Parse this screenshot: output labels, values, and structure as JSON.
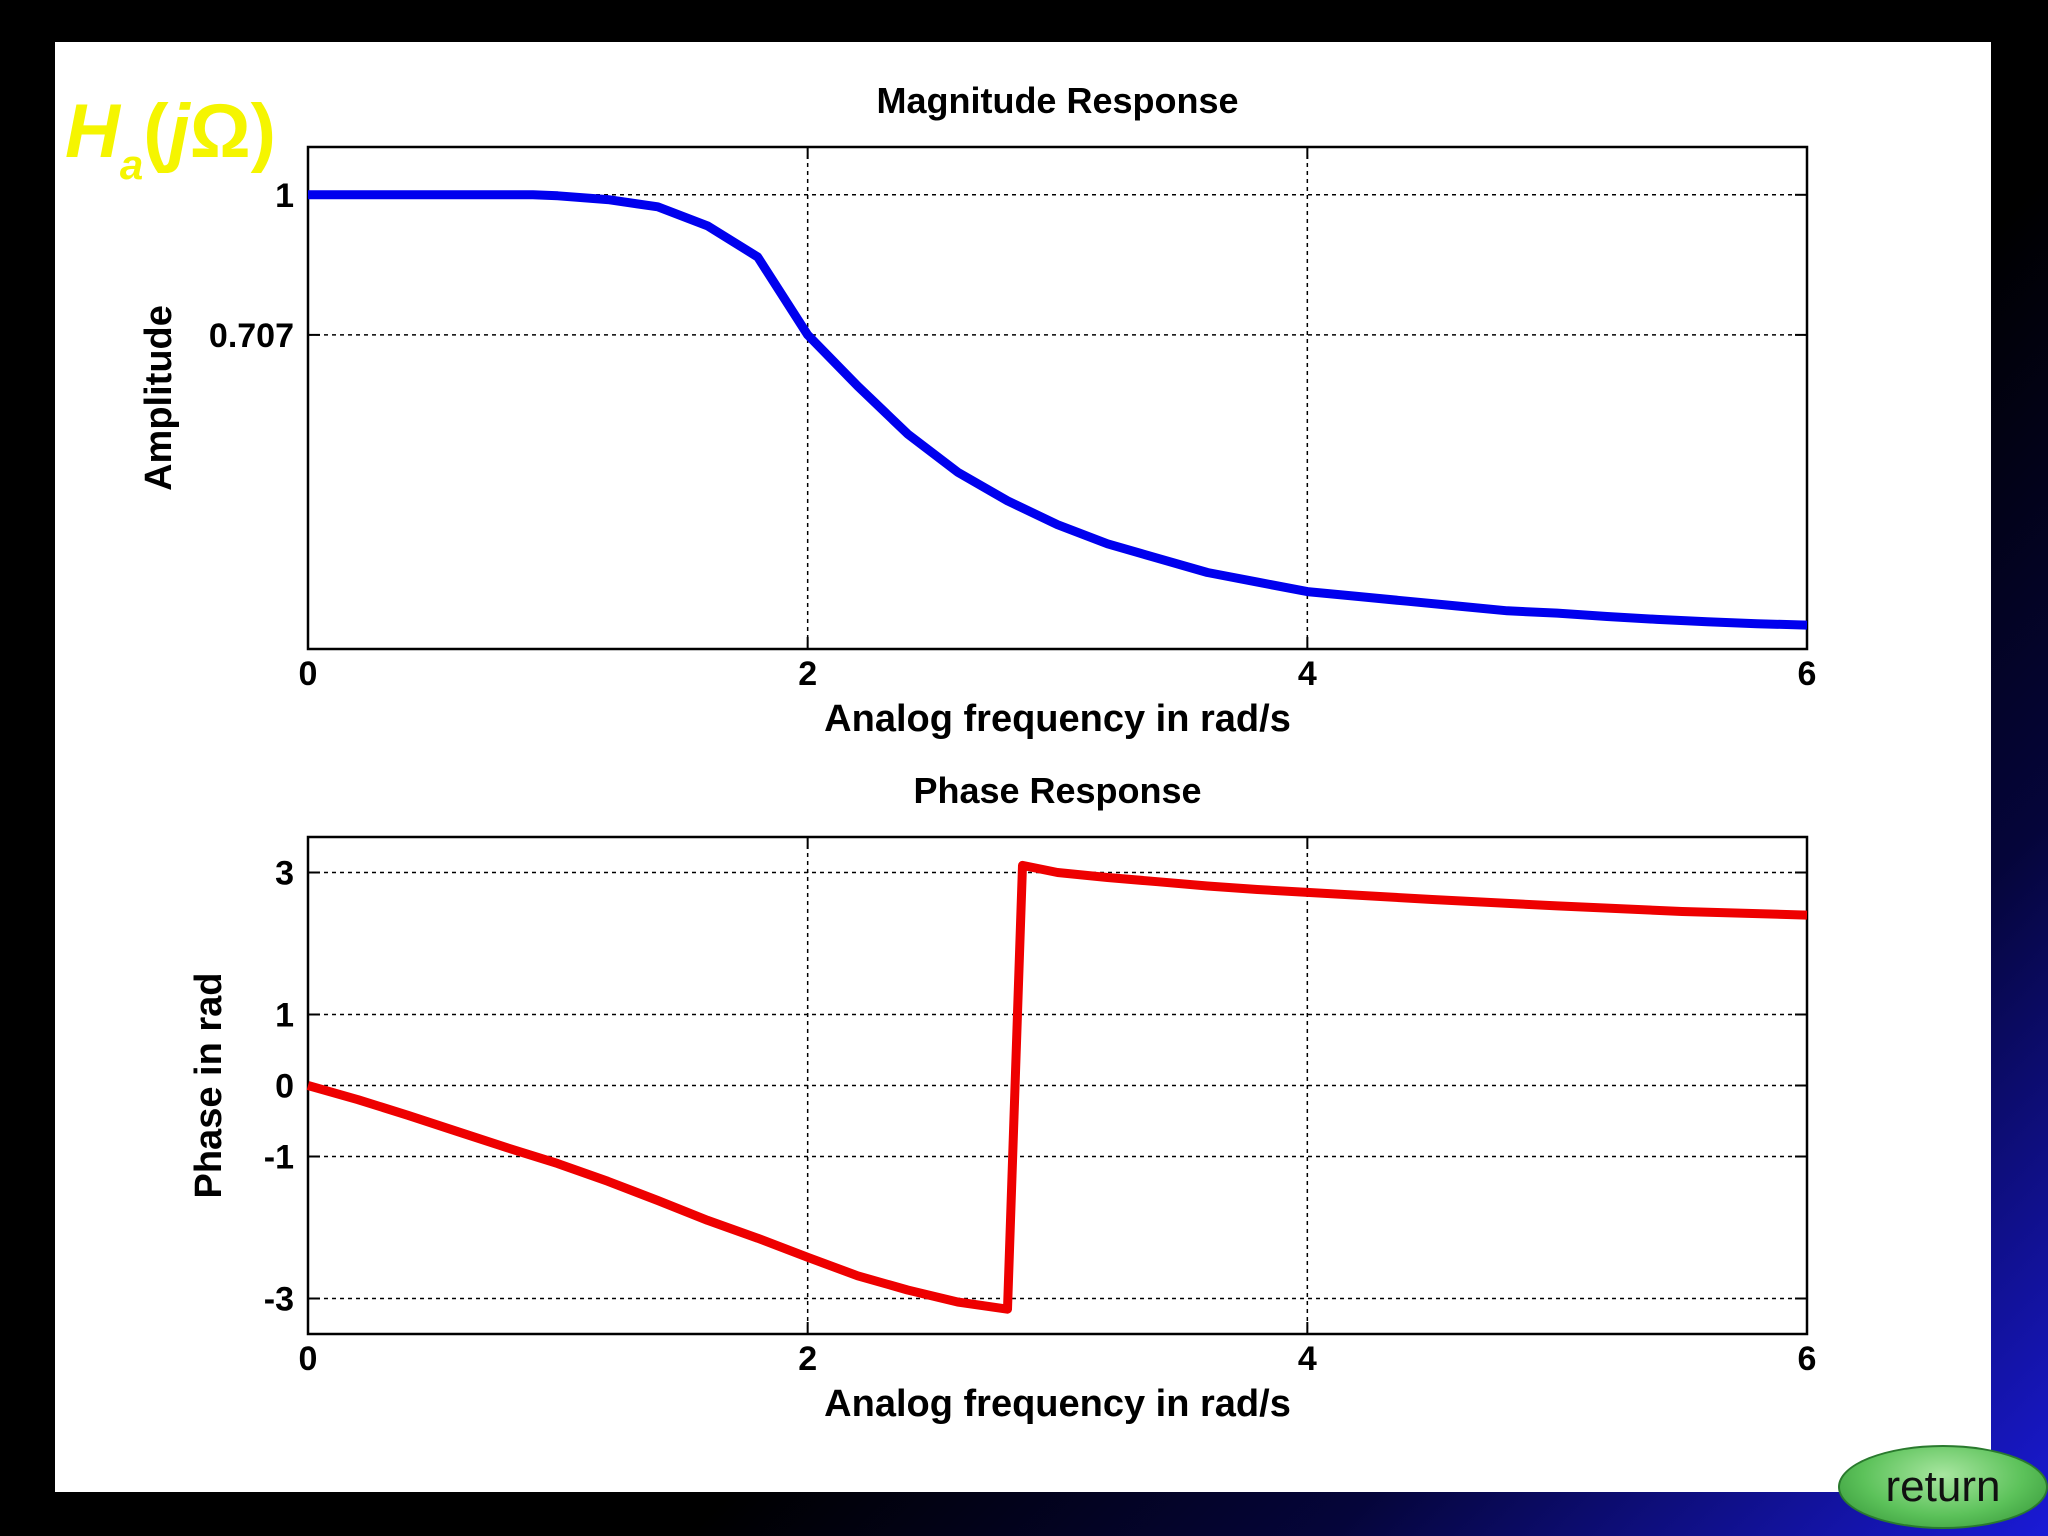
{
  "header_formula": {
    "H": "H",
    "sub": "a",
    "open": "(",
    "j": "j",
    "omega": "Ω",
    "close": ")"
  },
  "return_label": "return",
  "colors": {
    "magnitude": "#0000ee",
    "phase": "#ee0000",
    "formula": "#f5f500"
  },
  "chart_data": [
    {
      "type": "line",
      "title": "Magnitude Response",
      "xlabel": "Analog frequency in rad/s",
      "ylabel": "Amplitude",
      "xlim": [
        0,
        6
      ],
      "ylim": [
        0.05,
        1.1
      ],
      "xticks": [
        0,
        2,
        4,
        6
      ],
      "xtick_labels": [
        "0",
        "2",
        "4",
        "6"
      ],
      "yticks": [
        0.707,
        1
      ],
      "ytick_labels": [
        "0.707",
        "1"
      ],
      "grid": true,
      "series": [
        {
          "color": "#0000ee",
          "x": [
            0,
            0.5,
            0.9,
            1.0,
            1.2,
            1.4,
            1.6,
            1.8,
            2.0,
            2.2,
            2.4,
            2.6,
            2.8,
            3.0,
            3.2,
            3.4,
            3.6,
            3.8,
            4.0,
            4.2,
            4.4,
            4.6,
            4.8,
            5.0,
            5.2,
            5.4,
            5.6,
            5.8,
            6.0
          ],
          "y": [
            1.0,
            1.0,
            1.0,
            0.998,
            0.99,
            0.975,
            0.935,
            0.87,
            0.707,
            0.6,
            0.5,
            0.42,
            0.36,
            0.31,
            0.27,
            0.24,
            0.21,
            0.19,
            0.17,
            0.16,
            0.15,
            0.14,
            0.13,
            0.125,
            0.118,
            0.112,
            0.107,
            0.103,
            0.1
          ]
        }
      ]
    },
    {
      "type": "line",
      "title": "Phase Response",
      "xlabel": "Analog frequency in rad/s",
      "ylabel": "Phase in rad",
      "xlim": [
        0,
        6
      ],
      "ylim": [
        -3.5,
        3.5
      ],
      "xticks": [
        0,
        2,
        4,
        6
      ],
      "xtick_labels": [
        "0",
        "2",
        "4",
        "6"
      ],
      "yticks": [
        -3,
        -1,
        0,
        1,
        3
      ],
      "ytick_labels": [
        "-3",
        "-1",
        "0",
        "1",
        "3"
      ],
      "grid": true,
      "series": [
        {
          "color": "#ee0000",
          "x": [
            0,
            0.2,
            0.4,
            0.6,
            0.8,
            1.0,
            1.2,
            1.4,
            1.6,
            1.8,
            2.0,
            2.2,
            2.4,
            2.6,
            2.8,
            2.86,
            3.0,
            3.2,
            3.4,
            3.6,
            3.8,
            4.0,
            4.5,
            5.0,
            5.5,
            6.0
          ],
          "y": [
            0,
            -0.2,
            -0.42,
            -0.65,
            -0.88,
            -1.1,
            -1.35,
            -1.62,
            -1.9,
            -2.15,
            -2.42,
            -2.68,
            -2.88,
            -3.05,
            -3.15,
            3.1,
            3.0,
            2.93,
            2.87,
            2.81,
            2.76,
            2.72,
            2.62,
            2.53,
            2.45,
            2.4
          ]
        }
      ]
    }
  ]
}
